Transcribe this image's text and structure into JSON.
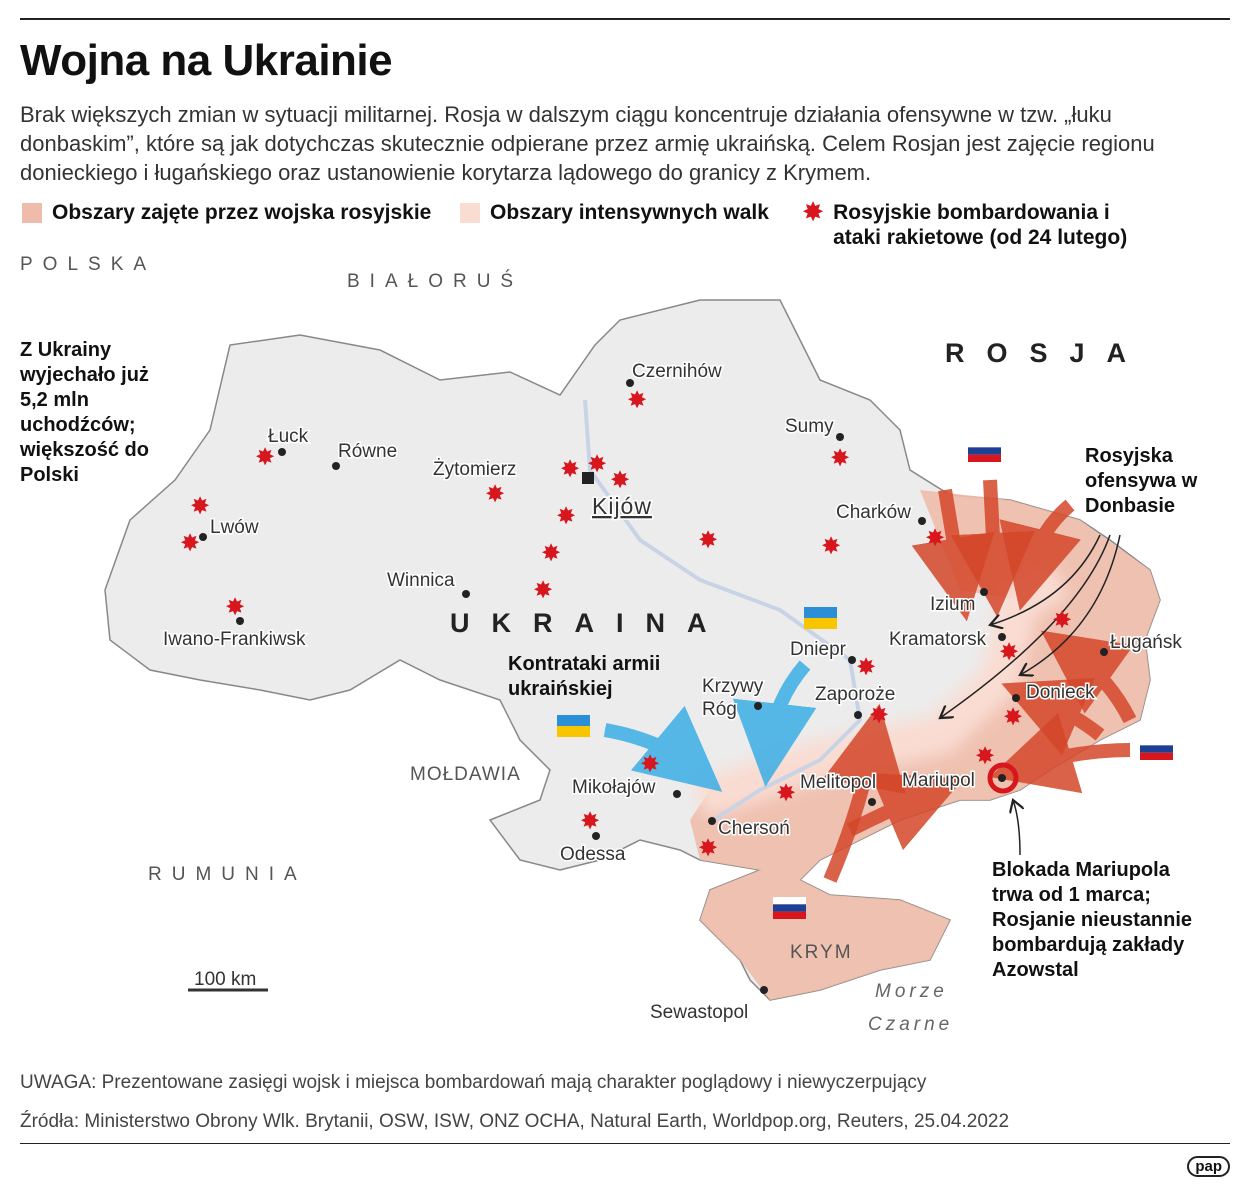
{
  "title": "Wojna na Ukrainie",
  "lead": "Brak większych zmian w sytuacji militarnej. Rosja w dalszym ciągu koncentruje działania ofensywne w tzw. „łuku donbaskim”, które są jak dotychczas skutecznie odpierane przez armię ukraińską. Celem Rosjan jest zajęcie regionu donieckiego i ługańskiego oraz ustanowienie korytarza lądowego do granicy z Krymem.",
  "legend": {
    "occupied": {
      "label": "Obszary zajęte przez wojska rosyjskie",
      "color": "#efbcab"
    },
    "fighting": {
      "label": "Obszary intensywnych walk",
      "color": "#f9dcd2"
    },
    "bombing": {
      "label": "Rosyjskie bombardowania i ataki rakietowe (od 24 lutego)",
      "color": "#d7161e",
      "icon": "explosion-star-icon"
    }
  },
  "countries": {
    "poland": "POLSKA",
    "belarus": "BIAŁORUŚ",
    "russia": "ROSJA",
    "ukraine": "UKRAINA",
    "moldova": "MOŁDAWIA",
    "romania": "RUMUNIA",
    "crimea": "KRYM",
    "sea": [
      "Morze",
      "Czarne"
    ]
  },
  "cities": [
    "Czernihów",
    "Sumy",
    "Łuck",
    "Równe",
    "Żytomierz",
    "Kijów",
    "Lwów",
    "Charków",
    "Winnica",
    "Izium",
    "Iwano-Frankiwsk",
    "Kramatorsk",
    "Ługańsk",
    "Dniepr",
    "Krzywy",
    "Róg",
    "Zaporoże",
    "Donieck",
    "Mikołajów",
    "Chersoń",
    "Melitopol",
    "Mariupol",
    "Odessa",
    "Sewastopol"
  ],
  "notes": {
    "refugees": "Z Ukrainy wyjechało już 5,2 mln uchodźców; większość do Polski",
    "counter": "Kontrataki armii ukraińskiej",
    "offensive": "Rosyjska ofensywa w Donbasie",
    "mariupol": "Blokada Mariupola trwa od 1 marca; Rosjanie nieustannie bombardują zakłady Azowstal"
  },
  "scale": "100 km",
  "colors": {
    "arrow_russia": "#d4472a",
    "arrow_ukraine": "#3aaee6",
    "map_land": "#ececec"
  },
  "footer": {
    "note": "UWAGA: Prezentowane zasięgi wojsk i miejsca bombardowań mają charakter poglądowy i niewyczerpujący",
    "sources": "Źródła: Ministerstwo Obrony Wlk. Brytanii, OSW, ISW, ONZ OCHA, Natural Earth, Worldpop.org, Reuters, 25.04.2022",
    "logo": "pap"
  }
}
